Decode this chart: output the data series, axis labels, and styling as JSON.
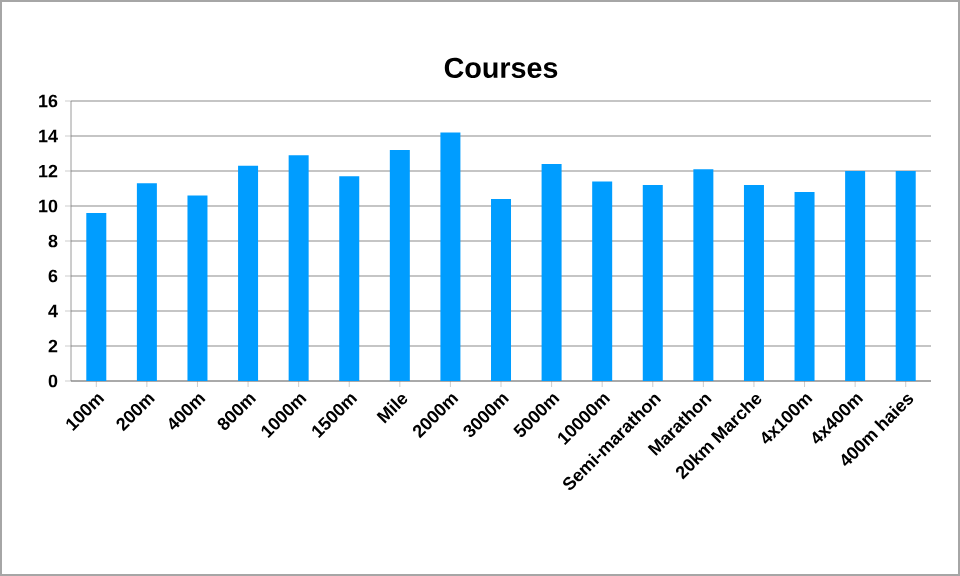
{
  "chart_data": {
    "type": "bar",
    "title": "Courses",
    "categories": [
      "100m",
      "200m",
      "400m",
      "800m",
      "1000m",
      "1500m",
      "Mile",
      "2000m",
      "3000m",
      "5000m",
      "10000m",
      "Semi-marathon",
      "Marathon",
      "20km Marche",
      "4x100m",
      "4x400m",
      "400m haies"
    ],
    "values": [
      9.6,
      11.3,
      10.6,
      12.3,
      12.9,
      11.7,
      13.2,
      14.2,
      10.4,
      12.4,
      11.4,
      11.2,
      12.1,
      11.2,
      10.8,
      12.0,
      12.0
    ],
    "color": "#009dff",
    "ylim": [
      0,
      16
    ],
    "yticks": [
      0,
      2,
      4,
      6,
      8,
      10,
      12,
      14,
      16
    ],
    "grid": "y"
  }
}
